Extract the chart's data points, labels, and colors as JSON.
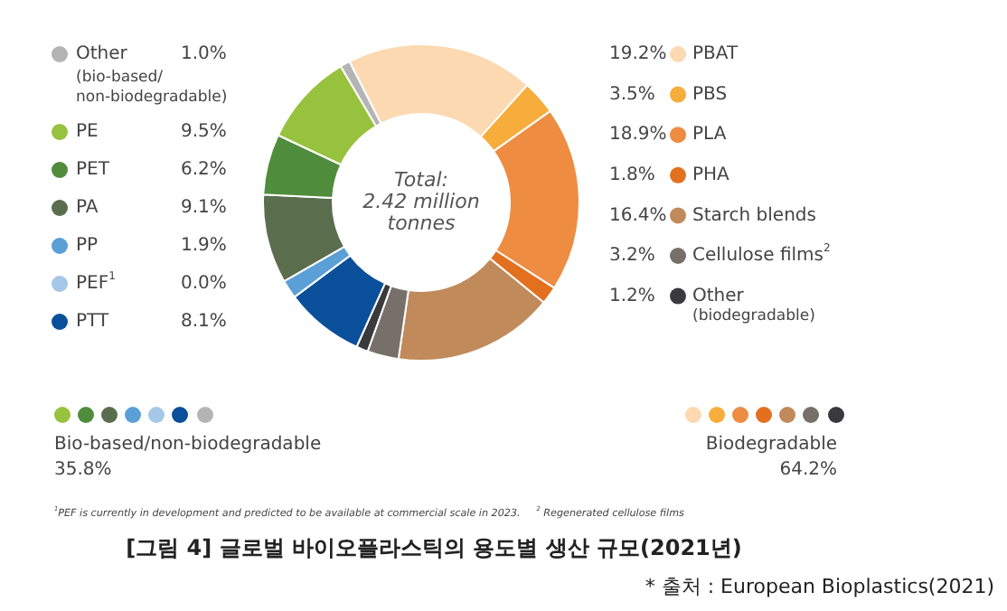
{
  "chart_data": {
    "type": "donut",
    "title": "[그림 4] 글로벌 바이오플라스틱의 용도별 생산 규모(2021년)",
    "categories": [
      "PBAT",
      "PBS",
      "PLA",
      "PHA",
      "Starch blends",
      "Cellulose films$^{2}$",
      "Other\n(biodegradable)",
      "PTT",
      "PEF$^{1}$",
      "PP",
      "PA",
      "PET",
      "PE",
      "Other\n(bio-based/\nnon-biodegradable)"
    ],
    "values": [
      19.2,
      3.5,
      18.9,
      1.8,
      16.4,
      3.2,
      1.2,
      8.1,
      0.0,
      1.9,
      9.1,
      6.2,
      9.5,
      1.0
    ],
    "value_labels": [
      "19.2%",
      "3.5%",
      "18.9%",
      "1.8%",
      "16.4%",
      "3.2%",
      "1.2%",
      "8.1%",
      "0.0%",
      "1.9%",
      "9.1%",
      "6.2%",
      "9.5%",
      "1.0%"
    ],
    "colors": [
      "#fcd9b0",
      "#f7ad3c",
      "#ee8c42",
      "#e3701f",
      "#c08a5a",
      "#767069",
      "#3a3a3c",
      "#0a4f9a",
      "#a6c8e8",
      "#5a9fd6",
      "#5a6e4e",
      "#4f8c3c",
      "#97c23d",
      "#b4b4b4"
    ],
    "legend": "right",
    "annotations": [
      "Total:\n2.42 million\ntonnes",
      "Bio-based/non-biodegradable\n35.8%",
      "Biodegradable\n64.2%",
      "$^{1}$PEF is currently in development and predicted to be available at commercial scale in 2023.     $^{2}$ Regenerated cellulose films",
      "* 출처 : European Bioplastics(2021)"
    ]
  }
}
